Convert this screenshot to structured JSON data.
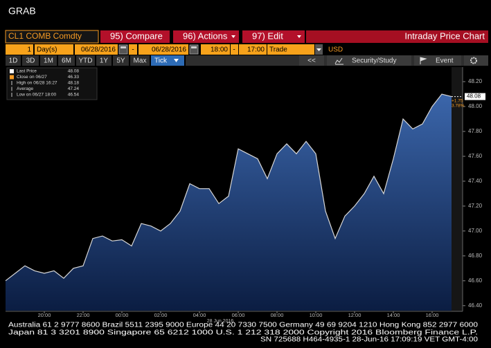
{
  "header": {
    "title": "GRAB"
  },
  "toolbar": {
    "ticker": "CL1 COMB Comdty",
    "buttons": [
      "95) Compare",
      "96) Actions",
      "97) Edit"
    ],
    "view_title": "Intraday Price Chart"
  },
  "params": {
    "period": "1",
    "unit": "Day(s)",
    "start_date": "06/28/2016",
    "end_date": "06/28/2016",
    "start_time": "18:00",
    "end_time": "17:00",
    "field": "Trade",
    "currency": "USD"
  },
  "ranges": [
    "1D",
    "3D",
    "1M",
    "6M",
    "YTD",
    "1Y",
    "5Y",
    "Max"
  ],
  "tick_mode": "Tick",
  "tools": {
    "back": "<<",
    "study": "Security/Study",
    "event": "Event"
  },
  "legend": [
    {
      "label": "Last Price",
      "value": 48.08,
      "color": "#ffffff"
    },
    {
      "label": "Close on 06/27",
      "value": 46.33,
      "color": "#f59a23"
    },
    {
      "label": "High on 06/28 16:27",
      "value": 48.18,
      "color": "#cccccc"
    },
    {
      "label": "Average",
      "value": 47.24,
      "color": "#cccccc"
    },
    {
      "label": "Low on 06/27 18:00",
      "value": 46.54,
      "color": "#cccccc"
    }
  ],
  "last_badge": {
    "change": "+1.75",
    "change_pct": "3.78%"
  },
  "chart_data": {
    "type": "area",
    "x_label": "28 Jun 2016",
    "categories": [
      null,
      null,
      null,
      null,
      "20:00",
      null,
      null,
      null,
      "22:00",
      null,
      null,
      null,
      "00:00",
      null,
      null,
      null,
      "02:00",
      null,
      null,
      null,
      "04:00",
      null,
      null,
      null,
      "06:00",
      null,
      null,
      null,
      "08:00",
      null,
      null,
      null,
      "10:00",
      null,
      null,
      null,
      "12:00",
      null,
      null,
      null,
      "14:00",
      null,
      null,
      null,
      "16:00",
      null,
      null
    ],
    "values": [
      46.6,
      46.66,
      46.72,
      46.68,
      46.66,
      46.68,
      46.62,
      46.7,
      46.72,
      46.94,
      46.96,
      46.92,
      46.93,
      46.88,
      47.06,
      47.04,
      47.0,
      47.06,
      47.16,
      47.38,
      47.34,
      47.34,
      47.22,
      47.28,
      47.66,
      47.62,
      47.58,
      47.42,
      47.62,
      47.7,
      47.62,
      47.72,
      47.62,
      47.16,
      46.94,
      47.12,
      47.2,
      47.3,
      47.44,
      47.3,
      47.58,
      47.9,
      47.82,
      47.86,
      48.0,
      48.1,
      48.08
    ],
    "color": "#d8d8d8",
    "ylim": [
      46.36,
      48.3
    ],
    "yticks": [
      {
        "value": 46.4,
        "label": "46.40"
      },
      {
        "value": 46.6,
        "label": "46.60"
      },
      {
        "value": 46.8,
        "label": "46.80"
      },
      {
        "value": 47,
        "label": "47.00"
      },
      {
        "value": 47.2,
        "label": "47.20"
      },
      {
        "value": 47.4,
        "label": "47.40"
      },
      {
        "value": 47.6,
        "label": "47.60"
      },
      {
        "value": 47.8,
        "label": "47.80"
      },
      {
        "value": 48,
        "label": "48.00"
      },
      {
        "value": 48.2,
        "label": "48.20"
      }
    ],
    "y_axis_side": "right",
    "grid": false
  },
  "footer": [
    "Australia 61 2 9777 8600 Brazil 5511 2395 9000 Europe 44 20 7330 7500 Germany 49 69 9204 1210 Hong Kong 852 2977 6000",
    "Japan 81 3 3201 8900        Singapore 65 6212 1000        U.S. 1 212 318 2000        Copyright 2016 Bloomberg Finance L.P.",
    "SN 725688 H464-4935-1 28-Jun-16 17:09:19 VET  GMT-4:00"
  ]
}
